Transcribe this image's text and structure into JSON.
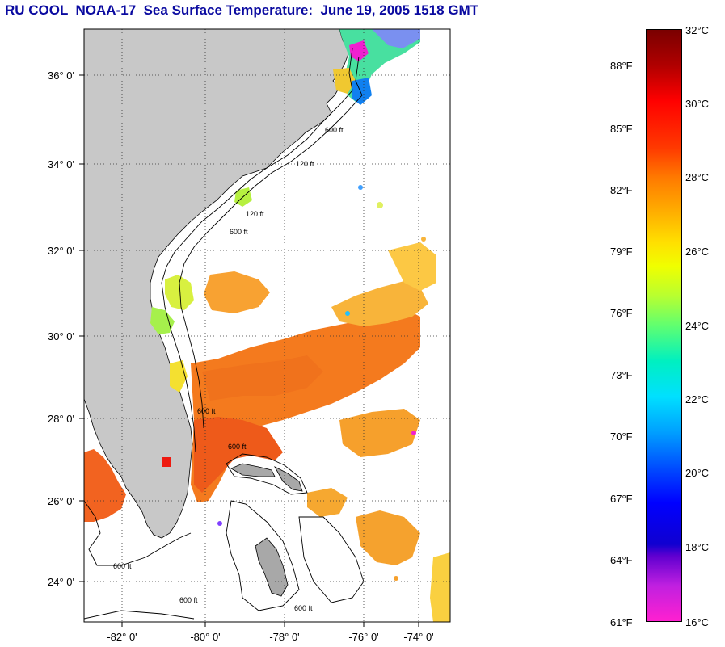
{
  "header": {
    "title": "RU COOL  NOAA-17  Sea Surface Temperature:  June 19, 2005 1518 GMT"
  },
  "map": {
    "lat_labels": [
      "36° 0'",
      "34° 0'",
      "32° 0'",
      "30° 0'",
      "28° 0'",
      "26° 0'",
      "24° 0'"
    ],
    "lon_labels": [
      "-82° 0'",
      "-80° 0'",
      "-78° 0'",
      "-76° 0'",
      "-74° 0'"
    ],
    "isobath_labels": [
      "120 ft",
      "600 ft",
      "120 ft",
      "600 ft",
      "600 ft",
      "600 ft",
      "600 ft",
      "600 ft",
      "600 ft"
    ],
    "colors": {
      "land": "#c8c8c8",
      "ocean_nodata": "#ffffff",
      "gridline": "#444444"
    }
  },
  "colorbar": {
    "celsius_labels": [
      "32°C",
      "30°C",
      "28°C",
      "26°C",
      "24°C",
      "22°C",
      "20°C",
      "18°C",
      "16°C"
    ],
    "fahrenheit_labels": [
      "88°F",
      "85°F",
      "82°F",
      "79°F",
      "76°F",
      "73°F",
      "70°F",
      "67°F",
      "64°F",
      "61°F"
    ],
    "celsius_range": [
      16,
      32
    ],
    "fahrenheit_range": [
      61,
      88
    ]
  }
}
